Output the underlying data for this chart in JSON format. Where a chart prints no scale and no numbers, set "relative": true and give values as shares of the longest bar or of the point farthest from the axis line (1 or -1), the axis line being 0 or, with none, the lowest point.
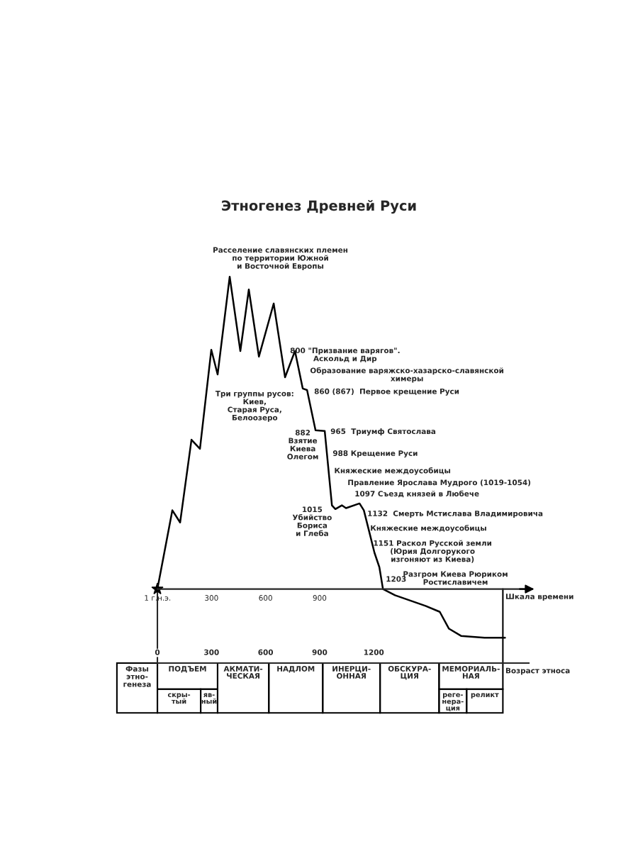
{
  "chart_data": {
    "type": "line",
    "title": "Этногенез Древней Руси",
    "relative": true,
    "x": [
      0,
      83,
      126,
      189,
      236,
      299,
      334,
      401,
      460,
      507,
      563,
      645,
      708,
      763,
      806,
      830,
      877,
      928,
      968,
      987,
      1023,
      1046,
      1121,
      1145,
      1172,
      1204,
      1231,
      1251,
      1318,
      1487,
      1566,
      1617,
      1684,
      1814,
      1928
    ],
    "series": [
      {
        "color": "#000000",
        "values": [
          0,
          0.252,
          0.213,
          0.478,
          0.449,
          0.766,
          0.687,
          1.0,
          0.762,
          0.959,
          0.744,
          0.914,
          0.678,
          0.762,
          0.642,
          0.637,
          0.508,
          0.506,
          0.268,
          0.256,
          0.268,
          0.259,
          0.274,
          0.252,
          0.19,
          0.116,
          0.07,
          0,
          -0.02,
          -0.054,
          -0.073,
          -0.127,
          -0.15,
          -0.156,
          -0.156
        ]
      }
    ],
    "xlim": [
      0,
      2060
    ],
    "xticks": [
      {
        "value": 1,
        "label": "1 г.н.э."
      },
      300,
      600,
      900
    ],
    "xlabel": "Шкала времени",
    "x2lim": [
      0,
      2060
    ],
    "x2ticks": [
      0,
      300,
      600,
      900,
      1200
    ],
    "x2label": "Возраст этноса",
    "annotations": [
      "Фазы\nэтно-\nгенеза",
      "Расселение славянских племен\nпо территории Южной\nи Восточной Европы",
      "Три группы русов:\nКиев,\nСтарая Руса,\nБелоозеро",
      "800 \"Призвание варягов\".\nАскольд и Дир",
      "Образование варяжско-хазарско-славянской\nхимеры",
      "860 (867)  Первое крещение Руси",
      "882\nВзятие\nКиева\nОлегом",
      "965  Триумф Святослава",
      "988 Крещение Руси",
      "Княжеские междоусобицы",
      "Правление Ярослава Мудрого (1019-1054)",
      "1097 Съезд князей в Любече",
      "1015\nУбийство\nБориса\nи Глеба",
      "1132  Смерть Мстислава Владимировича",
      "Княжеские междоусобицы",
      "1151 Раскол Русской земли\n(Юрия Долгорукого\nизгоняют из Киева)",
      "1203",
      "Разгром Киева Рюриком\nРостиславичем",
      "ПОДЪЕМ",
      "скры-\nтый",
      "яв-\nный",
      "АКМАТИ-\nЧЕСКАЯ",
      "НАДЛОМ",
      "ИНЕРЦИ-\nОННАЯ",
      "ОБСКУРА-\nЦИЯ",
      "МЕМОРИАЛЬ-\nНАЯ",
      "реге-\nнера-\nция",
      "реликт"
    ]
  }
}
